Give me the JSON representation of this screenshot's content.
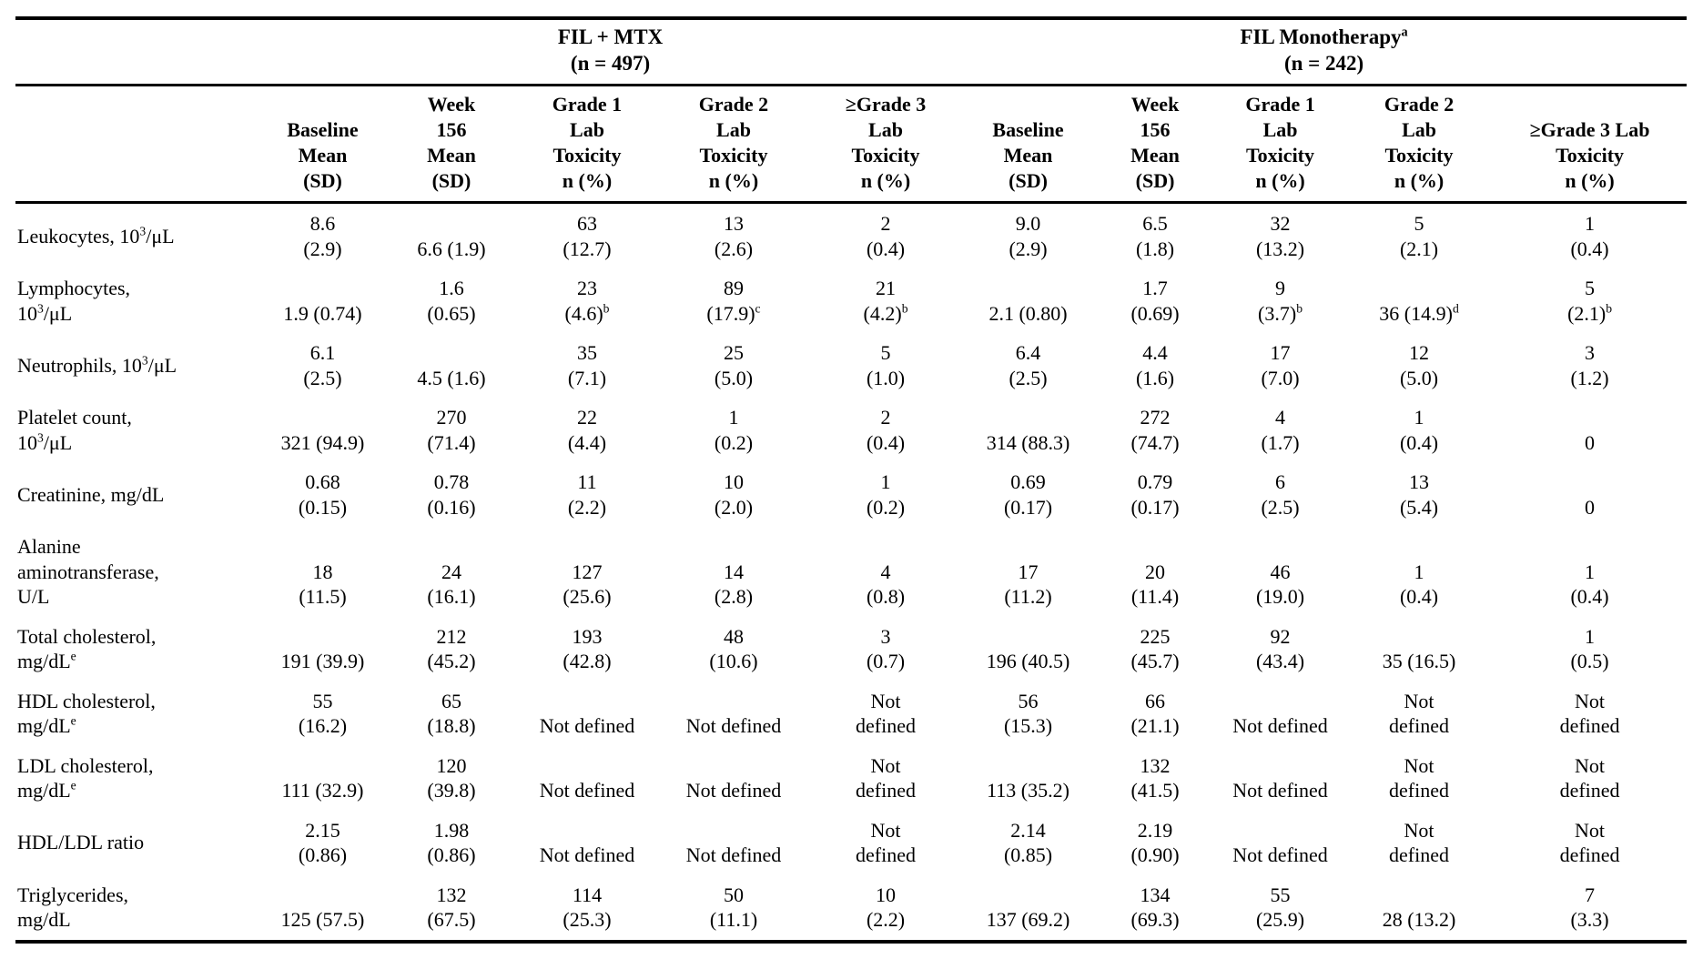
{
  "table": {
    "group_headers": [
      {
        "title": "FIL + MTX",
        "n_line": "(n = 497)"
      },
      {
        "title": "FIL Monotherapy^{a}",
        "n_line": "(n = 242)"
      }
    ],
    "column_headers": [
      {
        "lines": [
          "Baseline",
          "Mean",
          "(SD)"
        ]
      },
      {
        "lines": [
          "Week",
          "156",
          "Mean",
          "(SD)"
        ]
      },
      {
        "lines": [
          "Grade 1",
          "Lab",
          "Toxicity",
          "n (%)"
        ]
      },
      {
        "lines": [
          "Grade 2",
          "Lab",
          "Toxicity",
          "n (%)"
        ]
      },
      {
        "lines": [
          "≥Grade 3",
          "Lab",
          "Toxicity",
          "n (%)"
        ]
      },
      {
        "lines": [
          "Baseline",
          "Mean",
          "(SD)"
        ]
      },
      {
        "lines": [
          "Week",
          "156",
          "Mean",
          "(SD)"
        ]
      },
      {
        "lines": [
          "Grade 1",
          "Lab",
          "Toxicity",
          "n (%)"
        ]
      },
      {
        "lines": [
          "Grade 2",
          "Lab",
          "Toxicity",
          "n (%)"
        ]
      },
      {
        "lines": [
          "≥Grade 3 Lab",
          "Toxicity",
          "n (%)"
        ]
      }
    ],
    "rows": [
      {
        "label": [
          "Leukocytes, 10^{3}/μL"
        ],
        "cells": [
          [
            "8.6",
            "(2.9)"
          ],
          [
            "6.6 (1.9)"
          ],
          [
            "63",
            "(12.7)"
          ],
          [
            "13",
            "(2.6)"
          ],
          [
            "2",
            "(0.4)"
          ],
          [
            "9.0",
            "(2.9)"
          ],
          [
            "6.5",
            "(1.8)"
          ],
          [
            "32",
            "(13.2)"
          ],
          [
            "5",
            "(2.1)"
          ],
          [
            "1",
            "(0.4)"
          ]
        ]
      },
      {
        "label": [
          "Lymphocytes,",
          "10^{3}/μL"
        ],
        "cells": [
          [
            "1.9 (0.74)"
          ],
          [
            "1.6",
            "(0.65)"
          ],
          [
            "23",
            "(4.6)^{b}"
          ],
          [
            "89",
            "(17.9)^{c}"
          ],
          [
            "21",
            "(4.2)^{b}"
          ],
          [
            "2.1 (0.80)"
          ],
          [
            "1.7",
            "(0.69)"
          ],
          [
            "9",
            "(3.7)^{b}"
          ],
          [
            "36 (14.9)^{d}"
          ],
          [
            "5",
            "(2.1)^{b}"
          ]
        ]
      },
      {
        "label": [
          "Neutrophils, 10^{3}/μL"
        ],
        "cells": [
          [
            "6.1",
            "(2.5)"
          ],
          [
            "4.5 (1.6)"
          ],
          [
            "35",
            "(7.1)"
          ],
          [
            "25",
            "(5.0)"
          ],
          [
            "5",
            "(1.0)"
          ],
          [
            "6.4",
            "(2.5)"
          ],
          [
            "4.4",
            "(1.6)"
          ],
          [
            "17",
            "(7.0)"
          ],
          [
            "12",
            "(5.0)"
          ],
          [
            "3",
            "(1.2)"
          ]
        ]
      },
      {
        "label": [
          "Platelet count,",
          "10^{3}/μL"
        ],
        "cells": [
          [
            "321 (94.9)"
          ],
          [
            "270",
            "(71.4)"
          ],
          [
            "22",
            "(4.4)"
          ],
          [
            "1",
            "(0.2)"
          ],
          [
            "2",
            "(0.4)"
          ],
          [
            "314 (88.3)"
          ],
          [
            "272",
            "(74.7)"
          ],
          [
            "4",
            "(1.7)"
          ],
          [
            "1",
            "(0.4)"
          ],
          [
            "0"
          ]
        ]
      },
      {
        "label": [
          "Creatinine, mg/dL"
        ],
        "cells": [
          [
            "0.68",
            "(0.15)"
          ],
          [
            "0.78",
            "(0.16)"
          ],
          [
            "11",
            "(2.2)"
          ],
          [
            "10",
            "(2.0)"
          ],
          [
            "1",
            "(0.2)"
          ],
          [
            "0.69",
            "(0.17)"
          ],
          [
            "0.79",
            "(0.17)"
          ],
          [
            "6",
            "(2.5)"
          ],
          [
            "13",
            "(5.4)"
          ],
          [
            "0"
          ]
        ]
      },
      {
        "label": [
          "Alanine",
          "aminotransferase,",
          "U/L"
        ],
        "cells": [
          [
            "18",
            "(11.5)"
          ],
          [
            "24",
            "(16.1)"
          ],
          [
            "127",
            "(25.6)"
          ],
          [
            "14",
            "(2.8)"
          ],
          [
            "4",
            "(0.8)"
          ],
          [
            "17",
            "(11.2)"
          ],
          [
            "20",
            "(11.4)"
          ],
          [
            "46",
            "(19.0)"
          ],
          [
            "1",
            "(0.4)"
          ],
          [
            "1",
            "(0.4)"
          ]
        ]
      },
      {
        "label": [
          "Total cholesterol,",
          "mg/dL^{e}"
        ],
        "cells": [
          [
            "191 (39.9)"
          ],
          [
            "212",
            "(45.2)"
          ],
          [
            "193",
            "(42.8)"
          ],
          [
            "48",
            "(10.6)"
          ],
          [
            "3",
            "(0.7)"
          ],
          [
            "196 (40.5)"
          ],
          [
            "225",
            "(45.7)"
          ],
          [
            "92",
            "(43.4)"
          ],
          [
            "35 (16.5)"
          ],
          [
            "1",
            "(0.5)"
          ]
        ]
      },
      {
        "label": [
          "HDL cholesterol,",
          "mg/dL^{e}"
        ],
        "cells": [
          [
            "55",
            "(16.2)"
          ],
          [
            "65",
            "(18.8)"
          ],
          [
            "Not defined"
          ],
          [
            "Not defined"
          ],
          [
            "Not",
            "defined"
          ],
          [
            "56",
            "(15.3)"
          ],
          [
            "66",
            "(21.1)"
          ],
          [
            "Not defined"
          ],
          [
            "Not",
            "defined"
          ],
          [
            "Not",
            "defined"
          ]
        ]
      },
      {
        "label": [
          "LDL cholesterol,",
          "mg/dL^{e}"
        ],
        "cells": [
          [
            "111 (32.9)"
          ],
          [
            "120",
            "(39.8)"
          ],
          [
            "Not defined"
          ],
          [
            "Not defined"
          ],
          [
            "Not",
            "defined"
          ],
          [
            "113 (35.2)"
          ],
          [
            "132",
            "(41.5)"
          ],
          [
            "Not defined"
          ],
          [
            "Not",
            "defined"
          ],
          [
            "Not",
            "defined"
          ]
        ]
      },
      {
        "label": [
          "HDL/LDL ratio"
        ],
        "cells": [
          [
            "2.15",
            "(0.86)"
          ],
          [
            "1.98",
            "(0.86)"
          ],
          [
            "Not defined"
          ],
          [
            "Not defined"
          ],
          [
            "Not",
            "defined"
          ],
          [
            "2.14",
            "(0.85)"
          ],
          [
            "2.19",
            "(0.90)"
          ],
          [
            "Not defined"
          ],
          [
            "Not",
            "defined"
          ],
          [
            "Not",
            "defined"
          ]
        ]
      },
      {
        "label": [
          "Triglycerides,",
          "mg/dL"
        ],
        "cells": [
          [
            "125 (57.5)"
          ],
          [
            "132",
            "(67.5)"
          ],
          [
            "114",
            "(25.3)"
          ],
          [
            "50",
            "(11.1)"
          ],
          [
            "10",
            "(2.2)"
          ],
          [
            "137 (69.2)"
          ],
          [
            "134",
            "(69.3)"
          ],
          [
            "55",
            "(25.9)"
          ],
          [
            "28 (13.2)"
          ],
          [
            "7",
            "(3.3)"
          ]
        ]
      }
    ]
  }
}
